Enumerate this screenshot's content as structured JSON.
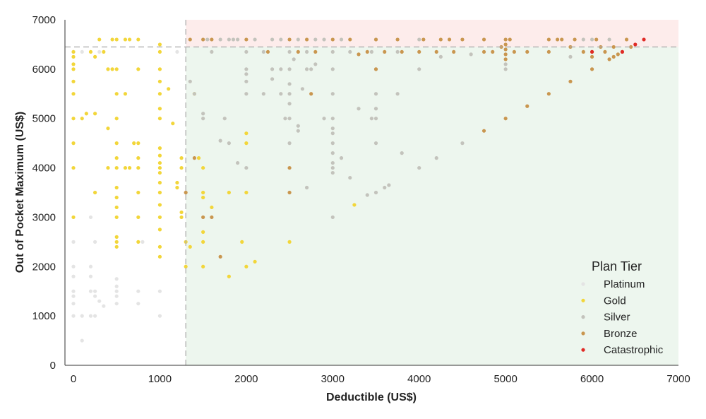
{
  "chart_data": {
    "type": "scatter",
    "xlabel": "Deductible (US$)",
    "ylabel": "Out of Pocket Maximum (US$)",
    "xlim": [
      0,
      7000
    ],
    "ylim": [
      0,
      7000
    ],
    "xticks": [
      "0",
      "1000",
      "2000",
      "3000",
      "4000",
      "5000",
      "6000",
      "7000"
    ],
    "yticks": [
      "0",
      "1000",
      "2000",
      "3000",
      "4000",
      "5000",
      "6000",
      "7000"
    ],
    "grid": false,
    "reference_lines": {
      "deductible_x": 1300,
      "oop_max_y": 6450
    },
    "regions": [
      {
        "name": "upper",
        "x": [
          1300,
          7000
        ],
        "y": [
          6450,
          7000
        ],
        "color": "#fdeceb"
      },
      {
        "name": "lower",
        "x": [
          1300,
          7000
        ],
        "y": [
          0,
          6450
        ],
        "color": "#edf6ee"
      }
    ],
    "legend": {
      "title": "Plan Tier",
      "position": "bottom-right"
    },
    "series": [
      {
        "name": "Platinum",
        "color": "#e4e4e4",
        "points": [
          [
            0,
            1000
          ],
          [
            0,
            1250
          ],
          [
            0,
            1400
          ],
          [
            0,
            1500
          ],
          [
            0,
            1800
          ],
          [
            0,
            2000
          ],
          [
            0,
            2500
          ],
          [
            100,
            500
          ],
          [
            100,
            1000
          ],
          [
            200,
            1000
          ],
          [
            200,
            1500
          ],
          [
            200,
            1800
          ],
          [
            200,
            2000
          ],
          [
            200,
            3000
          ],
          [
            250,
            1000
          ],
          [
            250,
            1400
          ],
          [
            250,
            1500
          ],
          [
            250,
            2500
          ],
          [
            300,
            1300
          ],
          [
            350,
            1200
          ],
          [
            500,
            1250
          ],
          [
            500,
            1400
          ],
          [
            500,
            1500
          ],
          [
            500,
            1600
          ],
          [
            500,
            1750
          ],
          [
            750,
            1250
          ],
          [
            750,
            1500
          ],
          [
            800,
            2500
          ],
          [
            1000,
            1000
          ],
          [
            1000,
            1500
          ],
          [
            0,
            6350
          ],
          [
            100,
            6350
          ],
          [
            300,
            6350
          ],
          [
            1200,
            6350
          ],
          [
            1500,
            6600
          ]
        ]
      },
      {
        "name": "Gold",
        "color": "#f2d63a",
        "points": [
          [
            0,
            3000
          ],
          [
            0,
            4000
          ],
          [
            0,
            4500
          ],
          [
            0,
            5000
          ],
          [
            0,
            5500
          ],
          [
            0,
            5750
          ],
          [
            0,
            6000
          ],
          [
            0,
            6100
          ],
          [
            0,
            6250
          ],
          [
            0,
            6350
          ],
          [
            100,
            5000
          ],
          [
            150,
            5100
          ],
          [
            200,
            6350
          ],
          [
            250,
            5100
          ],
          [
            250,
            3500
          ],
          [
            250,
            6250
          ],
          [
            300,
            6600
          ],
          [
            350,
            6350
          ],
          [
            400,
            4800
          ],
          [
            400,
            4000
          ],
          [
            400,
            6000
          ],
          [
            450,
            6600
          ],
          [
            450,
            6000
          ],
          [
            500,
            2400
          ],
          [
            500,
            2500
          ],
          [
            500,
            2600
          ],
          [
            500,
            3000
          ],
          [
            500,
            3200
          ],
          [
            500,
            3400
          ],
          [
            500,
            3600
          ],
          [
            500,
            4000
          ],
          [
            500,
            4200
          ],
          [
            500,
            4500
          ],
          [
            500,
            5000
          ],
          [
            500,
            5500
          ],
          [
            500,
            6000
          ],
          [
            500,
            6600
          ],
          [
            600,
            5500
          ],
          [
            600,
            4000
          ],
          [
            600,
            6600
          ],
          [
            650,
            4000
          ],
          [
            650,
            6600
          ],
          [
            700,
            4500
          ],
          [
            750,
            2500
          ],
          [
            750,
            3000
          ],
          [
            750,
            3500
          ],
          [
            750,
            4000
          ],
          [
            750,
            4200
          ],
          [
            750,
            4500
          ],
          [
            750,
            6000
          ],
          [
            750,
            6600
          ],
          [
            1000,
            2200
          ],
          [
            1000,
            2400
          ],
          [
            1000,
            2750
          ],
          [
            1000,
            3000
          ],
          [
            1000,
            3250
          ],
          [
            1000,
            3500
          ],
          [
            1000,
            3700
          ],
          [
            1000,
            3900
          ],
          [
            1000,
            4000
          ],
          [
            1000,
            4100
          ],
          [
            1000,
            4250
          ],
          [
            1000,
            4400
          ],
          [
            1000,
            5000
          ],
          [
            1000,
            5200
          ],
          [
            1000,
            5500
          ],
          [
            1000,
            5750
          ],
          [
            1000,
            6000
          ],
          [
            1000,
            6350
          ],
          [
            1000,
            6500
          ],
          [
            1100,
            5600
          ],
          [
            1150,
            4900
          ],
          [
            1200,
            3700
          ],
          [
            1200,
            3600
          ],
          [
            1250,
            3000
          ],
          [
            1250,
            3100
          ],
          [
            1250,
            4000
          ],
          [
            1250,
            4200
          ],
          [
            1300,
            2000
          ],
          [
            1300,
            2500
          ],
          [
            1350,
            2400
          ],
          [
            1400,
            5500
          ],
          [
            1450,
            4200
          ],
          [
            1500,
            2000
          ],
          [
            1500,
            2500
          ],
          [
            1500,
            2700
          ],
          [
            1500,
            3500
          ],
          [
            1500,
            3400
          ],
          [
            1500,
            4000
          ],
          [
            1600,
            3200
          ],
          [
            1800,
            1800
          ],
          [
            1800,
            3500
          ],
          [
            1950,
            2500
          ],
          [
            2000,
            2000
          ],
          [
            2000,
            3500
          ],
          [
            2000,
            4500
          ],
          [
            2000,
            4700
          ],
          [
            2100,
            2100
          ],
          [
            2500,
            2500
          ],
          [
            3250,
            3250
          ]
        ]
      },
      {
        "name": "Silver",
        "color": "#c3c3bc",
        "points": [
          [
            1350,
            5750
          ],
          [
            1400,
            5500
          ],
          [
            1500,
            5100
          ],
          [
            1500,
            5000
          ],
          [
            1700,
            4550
          ],
          [
            1750,
            5000
          ],
          [
            1800,
            4500
          ],
          [
            1900,
            4100
          ],
          [
            2000,
            4000
          ],
          [
            2000,
            5500
          ],
          [
            2000,
            5750
          ],
          [
            2000,
            5900
          ],
          [
            2000,
            6000
          ],
          [
            2200,
            5500
          ],
          [
            2300,
            6000
          ],
          [
            2300,
            5800
          ],
          [
            2400,
            5500
          ],
          [
            2400,
            6000
          ],
          [
            2450,
            5000
          ],
          [
            2500,
            4500
          ],
          [
            2500,
            5000
          ],
          [
            2500,
            5300
          ],
          [
            2500,
            5500
          ],
          [
            2500,
            5700
          ],
          [
            2500,
            6000
          ],
          [
            2550,
            6200
          ],
          [
            2600,
            4850
          ],
          [
            2600,
            4750
          ],
          [
            2650,
            5600
          ],
          [
            2700,
            3600
          ],
          [
            2700,
            6000
          ],
          [
            2750,
            6000
          ],
          [
            2800,
            6100
          ],
          [
            2900,
            5000
          ],
          [
            3000,
            3000
          ],
          [
            3000,
            3900
          ],
          [
            3000,
            4000
          ],
          [
            3000,
            4100
          ],
          [
            3000,
            4300
          ],
          [
            3000,
            4500
          ],
          [
            3000,
            4700
          ],
          [
            3000,
            4800
          ],
          [
            3000,
            5000
          ],
          [
            3000,
            5500
          ],
          [
            3000,
            6000
          ],
          [
            3100,
            4200
          ],
          [
            3200,
            3800
          ],
          [
            3300,
            5200
          ],
          [
            3400,
            3450
          ],
          [
            3450,
            5000
          ],
          [
            3500,
            3500
          ],
          [
            3500,
            4500
          ],
          [
            3500,
            5000
          ],
          [
            3500,
            5200
          ],
          [
            3500,
            5500
          ],
          [
            3500,
            6000
          ],
          [
            3600,
            3600
          ],
          [
            3650,
            3650
          ],
          [
            3750,
            5500
          ],
          [
            3800,
            4300
          ],
          [
            4000,
            4000
          ],
          [
            4000,
            6000
          ],
          [
            4200,
            4200
          ],
          [
            4250,
            6250
          ],
          [
            4500,
            4500
          ],
          [
            4600,
            6300
          ],
          [
            5000,
            6000
          ],
          [
            5000,
            6100
          ],
          [
            1550,
            6600
          ],
          [
            1600,
            6350
          ],
          [
            1700,
            6600
          ],
          [
            1800,
            6600
          ],
          [
            1850,
            6600
          ],
          [
            1900,
            6600
          ],
          [
            2000,
            6350
          ],
          [
            2100,
            6600
          ],
          [
            2200,
            6350
          ],
          [
            2300,
            6600
          ],
          [
            2400,
            6600
          ],
          [
            2500,
            6350
          ],
          [
            2600,
            6600
          ],
          [
            2700,
            6350
          ],
          [
            2800,
            6600
          ],
          [
            2900,
            6600
          ],
          [
            3000,
            6350
          ],
          [
            3100,
            6600
          ],
          [
            3200,
            6350
          ],
          [
            3450,
            6350
          ],
          [
            3500,
            6600
          ],
          [
            3750,
            6350
          ],
          [
            4000,
            6600
          ],
          [
            5750,
            6250
          ],
          [
            5900,
            6600
          ],
          [
            6000,
            6600
          ],
          [
            6200,
            6600
          ]
        ]
      },
      {
        "name": "Bronze",
        "color": "#c9964f",
        "points": [
          [
            1350,
            6600
          ],
          [
            1500,
            6600
          ],
          [
            1600,
            6600
          ],
          [
            2000,
            6600
          ],
          [
            2250,
            6350
          ],
          [
            2500,
            6600
          ],
          [
            2500,
            3500
          ],
          [
            2500,
            4000
          ],
          [
            2600,
            6350
          ],
          [
            2700,
            6600
          ],
          [
            2750,
            5500
          ],
          [
            2800,
            6350
          ],
          [
            3000,
            6600
          ],
          [
            3200,
            6600
          ],
          [
            3300,
            6300
          ],
          [
            3400,
            6350
          ],
          [
            3500,
            6000
          ],
          [
            3500,
            6600
          ],
          [
            3600,
            6350
          ],
          [
            3750,
            6600
          ],
          [
            3800,
            6350
          ],
          [
            4000,
            6350
          ],
          [
            4050,
            6600
          ],
          [
            4200,
            6350
          ],
          [
            4250,
            6600
          ],
          [
            4350,
            6600
          ],
          [
            4400,
            6350
          ],
          [
            4500,
            6600
          ],
          [
            4750,
            4750
          ],
          [
            4750,
            6350
          ],
          [
            4750,
            6600
          ],
          [
            4850,
            6350
          ],
          [
            4950,
            6450
          ],
          [
            5000,
            5000
          ],
          [
            5000,
            6200
          ],
          [
            5000,
            6300
          ],
          [
            5000,
            6400
          ],
          [
            5000,
            6500
          ],
          [
            5000,
            6600
          ],
          [
            5050,
            6600
          ],
          [
            5100,
            6350
          ],
          [
            5250,
            5250
          ],
          [
            5250,
            6350
          ],
          [
            5500,
            5500
          ],
          [
            5500,
            6350
          ],
          [
            5500,
            6600
          ],
          [
            5600,
            6600
          ],
          [
            5650,
            6600
          ],
          [
            5750,
            5750
          ],
          [
            5750,
            6450
          ],
          [
            5800,
            6600
          ],
          [
            5900,
            6350
          ],
          [
            6000,
            6000
          ],
          [
            6000,
            6250
          ],
          [
            6000,
            6350
          ],
          [
            6050,
            6600
          ],
          [
            6100,
            6450
          ],
          [
            6150,
            6350
          ],
          [
            6200,
            6200
          ],
          [
            6250,
            6250
          ],
          [
            6250,
            6450
          ],
          [
            6300,
            6300
          ],
          [
            6350,
            6350
          ],
          [
            6400,
            6600
          ],
          [
            6450,
            6450
          ],
          [
            1300,
            3500
          ],
          [
            1400,
            4200
          ],
          [
            1500,
            3000
          ],
          [
            1600,
            3000
          ],
          [
            1700,
            2200
          ]
        ]
      },
      {
        "name": "Catastrophic",
        "color": "#e02a25",
        "points": [
          [
            6000,
            6350
          ],
          [
            6350,
            6350
          ],
          [
            6500,
            6500
          ],
          [
            6600,
            6600
          ]
        ]
      }
    ]
  }
}
